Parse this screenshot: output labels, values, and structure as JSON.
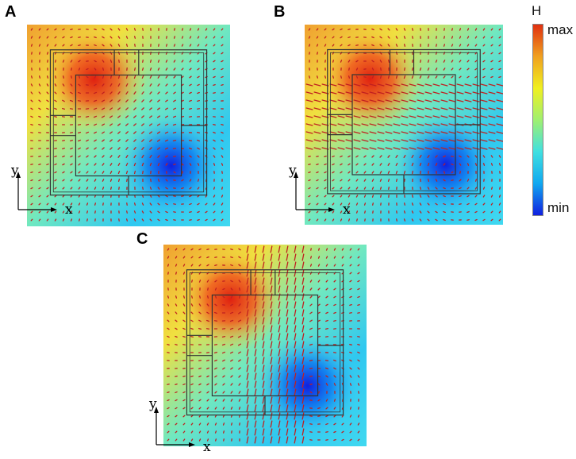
{
  "panels": [
    {
      "label": "A",
      "arrow_pattern": "uniform"
    },
    {
      "label": "B",
      "arrow_pattern": "horizontal-band"
    },
    {
      "label": "C",
      "arrow_pattern": "vertical-band"
    }
  ],
  "axes": {
    "x_label": "x",
    "y_label": "y"
  },
  "colorbar": {
    "title": "H",
    "max_label": "max",
    "min_label": "min",
    "colors": [
      "#1020e0",
      "#10a8f0",
      "#40e0e0",
      "#a0f070",
      "#f0f020",
      "#f0a020",
      "#e03010"
    ]
  },
  "colors": {
    "arrow": "#c02020",
    "outline": "#333333"
  }
}
